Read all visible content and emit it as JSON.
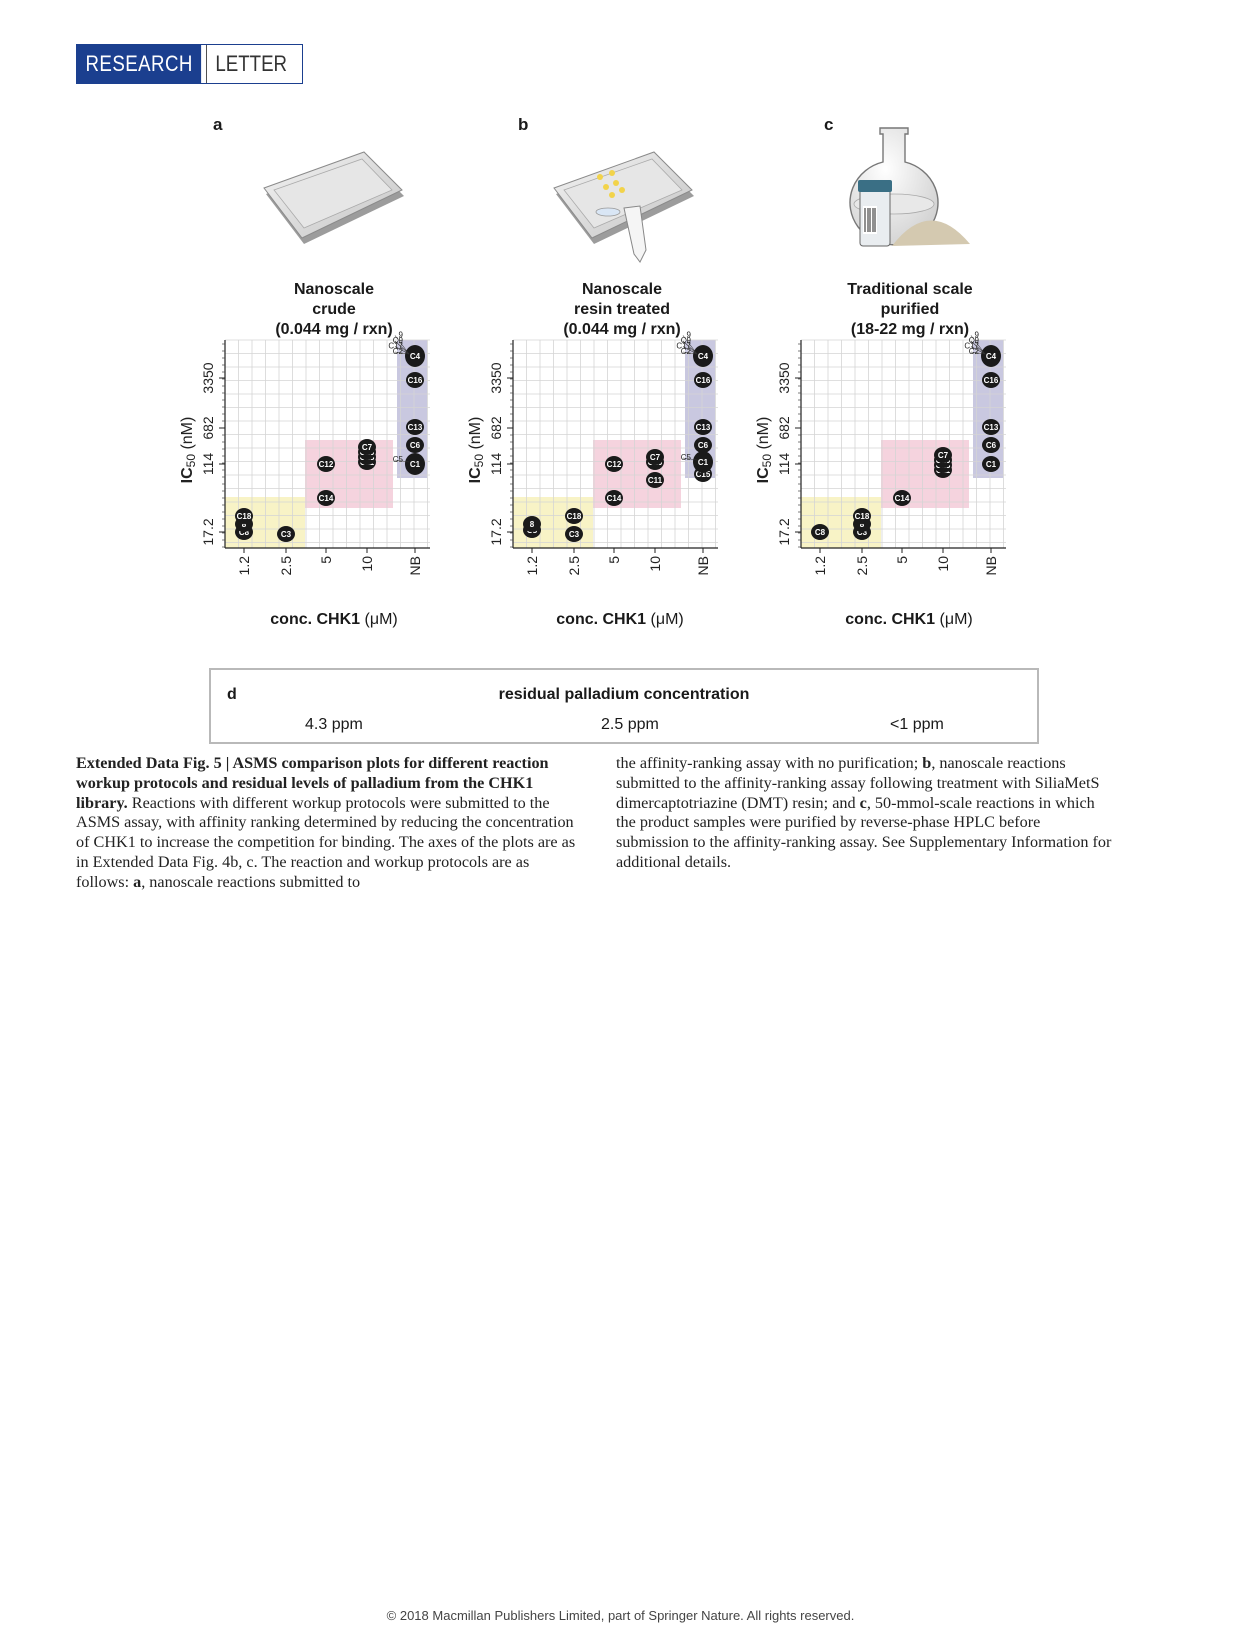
{
  "header": {
    "research": "RESEARCH",
    "letter": "LETTER"
  },
  "panels": [
    {
      "letter": "a",
      "title_lines": [
        "Nanoscale",
        "crude",
        "(0.044 mg / rxn)"
      ],
      "x_axis_title": "conc. CHK1",
      "x_axis_unit": "(μM)",
      "y_axis_title": "IC",
      "y_axis_sub": "50",
      "y_axis_unit": "(nM)"
    },
    {
      "letter": "b",
      "title_lines": [
        "Nanoscale",
        "resin treated",
        "(0.044 mg / rxn)"
      ],
      "x_axis_title": "conc. CHK1",
      "x_axis_unit": "(μM)",
      "y_axis_title": "IC",
      "y_axis_sub": "50",
      "y_axis_unit": "(nM)"
    },
    {
      "letter": "c",
      "title_lines": [
        "Traditional scale",
        "purified",
        "(18-22 mg / rxn)"
      ],
      "x_axis_title": "conc. CHK1",
      "x_axis_unit": "(μM)",
      "y_axis_title": "IC",
      "y_axis_sub": "50",
      "y_axis_unit": "(nM)"
    }
  ],
  "chart_data": [
    {
      "type": "scatter",
      "panel": "a",
      "x_ticks": [
        "1.2",
        "2.5",
        "5",
        "10",
        "NB"
      ],
      "y_ticks": [
        "17.2",
        "114",
        "682",
        "3350"
      ],
      "points": [
        {
          "label": "C18",
          "x": "1.2",
          "y": "17.2"
        },
        {
          "label": "8",
          "x": "1.2",
          "y": "17.2"
        },
        {
          "label": "C8",
          "x": "1.2",
          "y": "17.2"
        },
        {
          "label": "C3",
          "x": "2.5",
          "y": "17.2"
        },
        {
          "label": "C14",
          "x": "5",
          "y": "114"
        },
        {
          "label": "C12",
          "x": "5",
          "y": "114"
        },
        {
          "label": "C7",
          "x": "10",
          "y": "114"
        },
        {
          "label": "C10",
          "x": "10",
          "y": "114"
        },
        {
          "label": "C15",
          "x": "10",
          "y": "114"
        },
        {
          "label": "C11",
          "x": "10",
          "y": "114"
        },
        {
          "label": "C5",
          "x": "NB",
          "y": "114"
        },
        {
          "label": "C1",
          "x": "NB",
          "y": "114"
        },
        {
          "label": "C6",
          "x": "NB",
          "y": "682"
        },
        {
          "label": "C13",
          "x": "NB",
          "y": "682"
        },
        {
          "label": "C16",
          "x": "NB",
          "y": "3350"
        },
        {
          "label": "C4",
          "x": "NB",
          "y": "3350"
        },
        {
          "label": "C2",
          "x": "NB",
          "y": "3350"
        },
        {
          "label": "C17",
          "x": "NB",
          "y": "3350"
        },
        {
          "label": "C9",
          "x": "NB",
          "y": "3350"
        },
        {
          "label": "9",
          "x": "NB",
          "y": "3350"
        }
      ]
    },
    {
      "type": "scatter",
      "panel": "b",
      "x_ticks": [
        "1.2",
        "2.5",
        "5",
        "10",
        "NB"
      ],
      "y_ticks": [
        "17.2",
        "114",
        "682",
        "3350"
      ],
      "points": [
        {
          "label": "8",
          "x": "1.2",
          "y": "17.2"
        },
        {
          "label": "C8",
          "x": "1.2",
          "y": "17.2"
        },
        {
          "label": "C18",
          "x": "2.5",
          "y": "17.2"
        },
        {
          "label": "C3",
          "x": "2.5",
          "y": "17.2"
        },
        {
          "label": "C14",
          "x": "5",
          "y": "114"
        },
        {
          "label": "C12",
          "x": "5",
          "y": "114"
        },
        {
          "label": "C7",
          "x": "10",
          "y": "114"
        },
        {
          "label": "C10",
          "x": "10",
          "y": "114"
        },
        {
          "label": "C11",
          "x": "10",
          "y": "114"
        },
        {
          "label": "C15",
          "x": "NB",
          "y": "114"
        },
        {
          "label": "C5",
          "x": "NB",
          "y": "114"
        },
        {
          "label": "C1",
          "x": "NB",
          "y": "114"
        },
        {
          "label": "C6",
          "x": "NB",
          "y": "682"
        },
        {
          "label": "C13",
          "x": "NB",
          "y": "682"
        },
        {
          "label": "C16",
          "x": "NB",
          "y": "3350"
        },
        {
          "label": "C4",
          "x": "NB",
          "y": "3350"
        },
        {
          "label": "C2",
          "x": "NB",
          "y": "3350"
        },
        {
          "label": "C17",
          "x": "NB",
          "y": "3350"
        },
        {
          "label": "C9",
          "x": "NB",
          "y": "3350"
        },
        {
          "label": "9",
          "x": "NB",
          "y": "3350"
        }
      ]
    },
    {
      "type": "scatter",
      "panel": "c",
      "x_ticks": [
        "1.2",
        "2.5",
        "5",
        "10",
        "NB"
      ],
      "y_ticks": [
        "17.2",
        "114",
        "682",
        "3350"
      ],
      "points": [
        {
          "label": "C8",
          "x": "1.2",
          "y": "17.2"
        },
        {
          "label": "C18",
          "x": "2.5",
          "y": "17.2"
        },
        {
          "label": "8",
          "x": "2.5",
          "y": "17.2"
        },
        {
          "label": "C3",
          "x": "2.5",
          "y": "17.2"
        },
        {
          "label": "C14",
          "x": "5",
          "y": "114"
        },
        {
          "label": "C7",
          "x": "10",
          "y": "114"
        },
        {
          "label": "C10",
          "x": "10",
          "y": "114"
        },
        {
          "label": "C15",
          "x": "10",
          "y": "114"
        },
        {
          "label": "C11",
          "x": "10",
          "y": "114"
        },
        {
          "label": "C1",
          "x": "NB",
          "y": "114"
        },
        {
          "label": "C6",
          "x": "NB",
          "y": "682"
        },
        {
          "label": "C13",
          "x": "NB",
          "y": "682"
        },
        {
          "label": "C16",
          "x": "NB",
          "y": "3350"
        },
        {
          "label": "C4",
          "x": "NB",
          "y": "3350"
        },
        {
          "label": "C2",
          "x": "NB",
          "y": "3350"
        },
        {
          "label": "C17",
          "x": "NB",
          "y": "3350"
        },
        {
          "label": "C9",
          "x": "NB",
          "y": "3350"
        },
        {
          "label": "9",
          "x": "NB",
          "y": "3350"
        }
      ]
    }
  ],
  "panel_d": {
    "letter": "d",
    "title": "residual palladium concentration",
    "values": [
      "4.3 ppm",
      "2.5 ppm",
      "<1 ppm"
    ]
  },
  "caption": {
    "fig_label": "Extended Data Fig. 5 | ASMS comparison plots for different reaction workup protocols and residual levels of palladium from the CHK1 library.",
    "text_1": " Reactions with different workup protocols were submitted to the ASMS assay, with affinity ranking determined by reducing the concentration of CHK1 to increase the competition for binding. The axes of the plots are as in Extended Data Fig. 4b, c. The reaction and workup protocols are as follows: ",
    "a": "a",
    "text_2": ", nanoscale reactions submitted to the affinity-ranking assay with no purification; ",
    "b": "b",
    "text_3": ", nanoscale reactions submitted to the affinity-ranking assay following treatment with SiliaMetS dimercaptotriazine (DMT) resin; and ",
    "c": "c",
    "text_4": ", 50-mmol-scale reactions in which the product samples were purified by reverse-phase HPLC before submission to the affinity-ranking assay. See Supplementary Information for additional details."
  },
  "footer": "© 2018 Macmillan Publishers Limited, part of Springer Nature. All rights reserved.",
  "colors": {
    "brand_blue": "#1b3f8f",
    "yellow_zone": "#f8f3c6",
    "pink_zone": "#f5d3de",
    "blue_zone": "#c9c8e0",
    "grid": "#d5d5d5",
    "dot": "#1a1a1a"
  }
}
